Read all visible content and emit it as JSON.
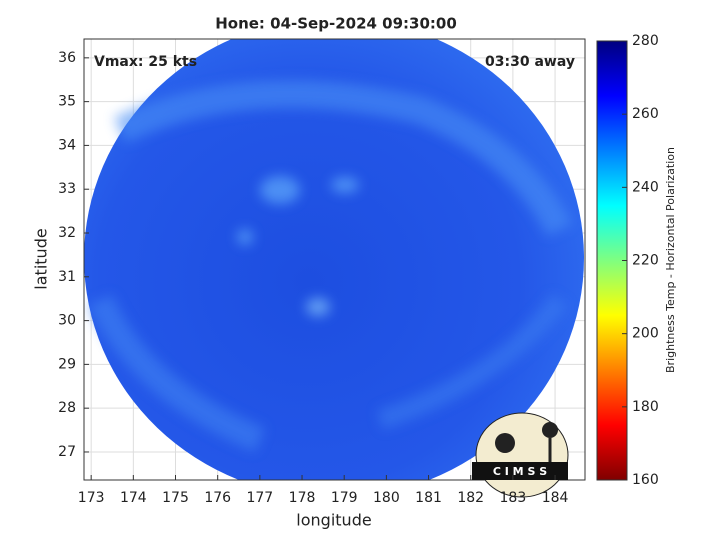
{
  "chart_data": {
    "type": "image",
    "title": "Hone: 04-Sep-2024 09:30:00",
    "annotations": [
      "Vmax: 25 kts",
      "03:30 away"
    ],
    "xlabel": "longitude",
    "ylabel": "latitude",
    "xlim": [
      172.83,
      184.71
    ],
    "ylim": [
      26.36,
      36.43
    ],
    "xticks": [
      173,
      174,
      175,
      176,
      177,
      178,
      179,
      180,
      181,
      182,
      183,
      184
    ],
    "yticks": [
      27,
      28,
      29,
      30,
      31,
      32,
      33,
      34,
      35,
      36
    ],
    "grid": true,
    "colorbar": {
      "label": "Brightness Temp - Horizontal Polarization",
      "colormap": "jet",
      "lim": [
        160,
        280
      ],
      "ticks": [
        160,
        180,
        200,
        220,
        240,
        260,
        280
      ]
    },
    "logo": "C I M S S"
  }
}
